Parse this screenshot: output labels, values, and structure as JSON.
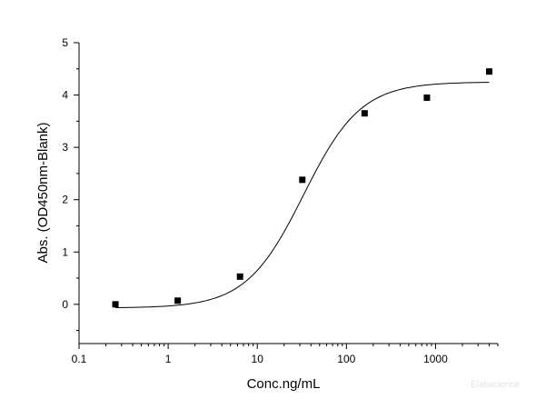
{
  "chart_data": {
    "type": "scatter",
    "title": "",
    "xlabel": "Conc.ng/mL",
    "ylabel": "Abs. (OD450nm-Blank)",
    "xscale": "log",
    "xlim": [
      0.1,
      5000
    ],
    "ylim": [
      -0.75,
      5
    ],
    "x_ticks": [
      0.1,
      1,
      10,
      100,
      1000
    ],
    "x_tick_labels": [
      "0.1",
      "1",
      "10",
      "100",
      "1000"
    ],
    "y_ticks": [
      0,
      1,
      2,
      3,
      4,
      5
    ],
    "y_tick_labels": [
      "0",
      "1",
      "2",
      "3",
      "4",
      "5"
    ],
    "grid": false,
    "series": [
      {
        "marker": "square",
        "color": "#000000",
        "x": [
          0.256,
          1.28,
          6.4,
          32,
          160,
          800,
          4000
        ],
        "y": [
          0.0,
          0.07,
          0.53,
          2.38,
          3.65,
          3.95,
          4.45
        ]
      }
    ],
    "fit_curve": {
      "model": "4PL",
      "bottom": -0.07,
      "top": 4.25,
      "ec50": 33,
      "hill": 1.35,
      "color": "#000000"
    },
    "watermark": "Elabscience"
  }
}
